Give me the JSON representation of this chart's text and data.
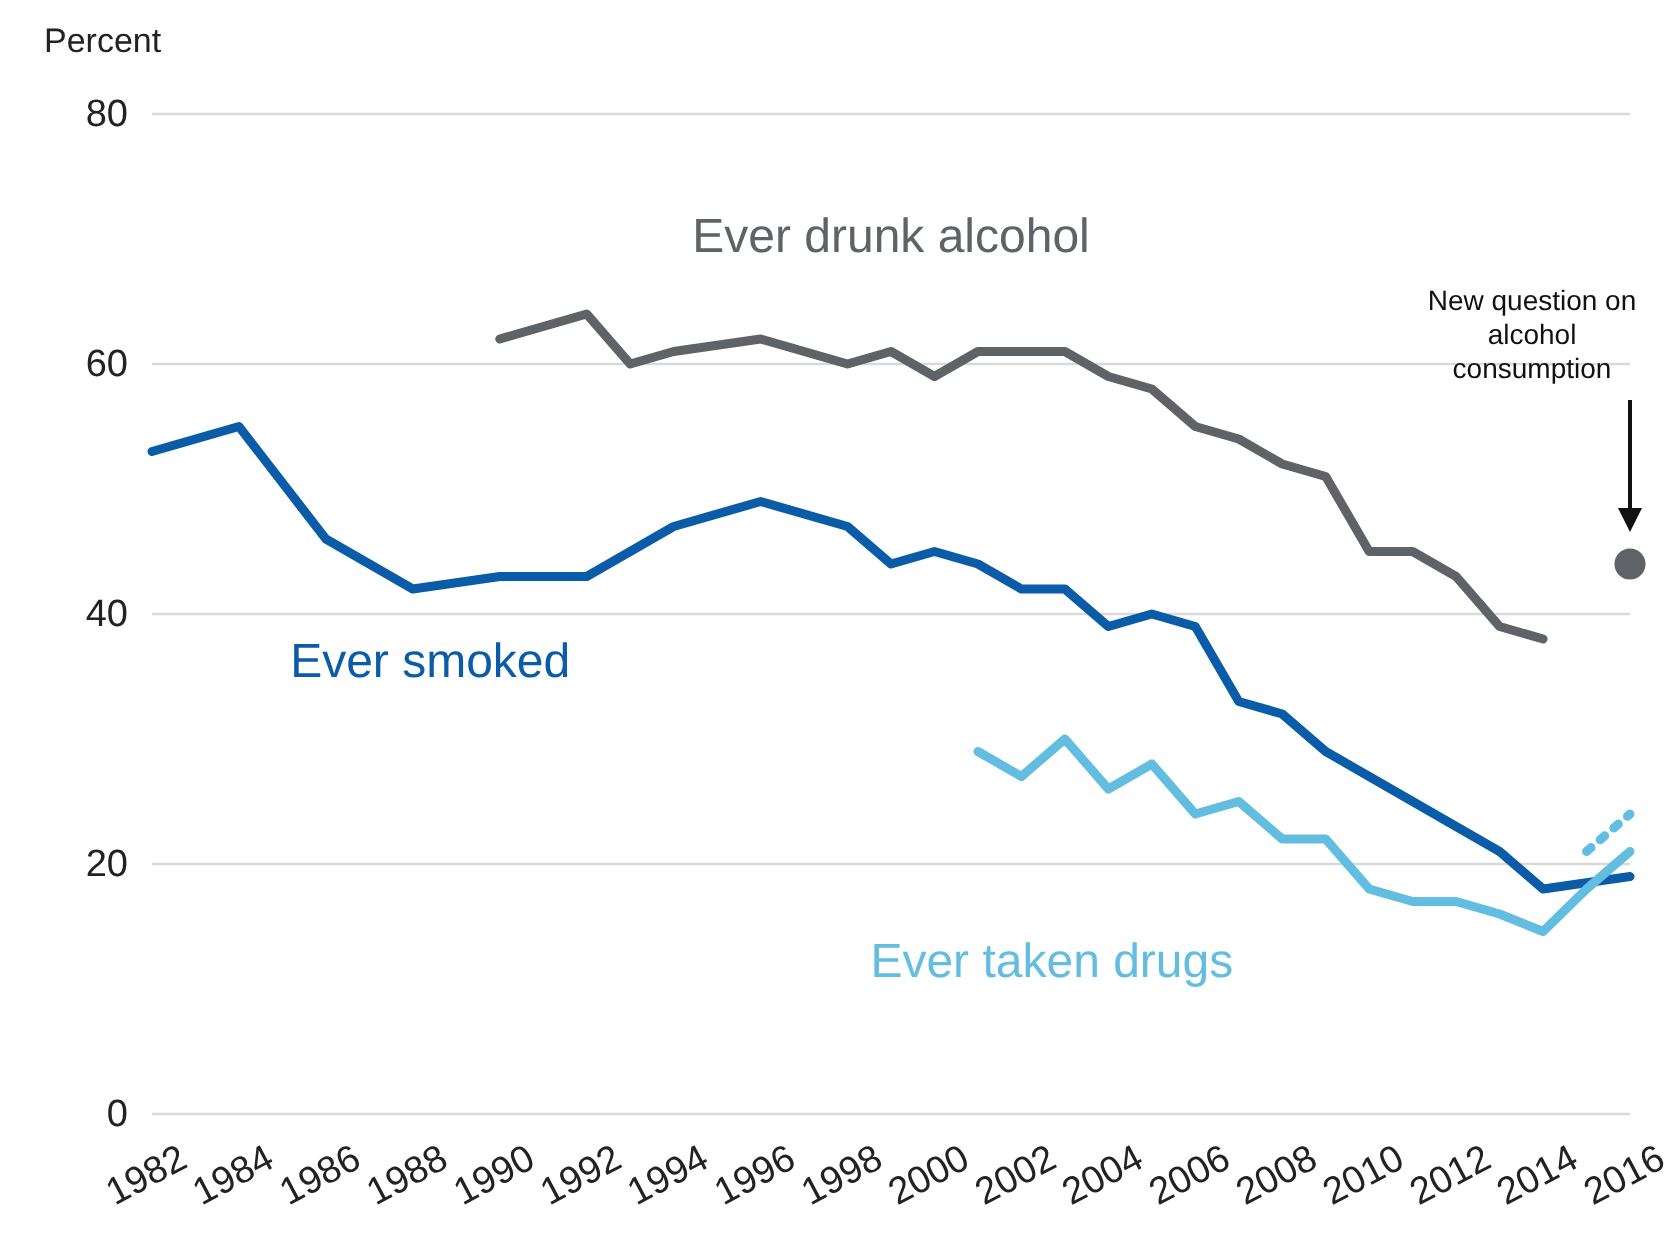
{
  "chart_data": {
    "type": "line",
    "ylabel": "Percent",
    "xlim": [
      1982,
      2016
    ],
    "xticks": [
      1982,
      1984,
      1986,
      1988,
      1990,
      1992,
      1994,
      1996,
      1998,
      2000,
      2002,
      2004,
      2006,
      2008,
      2010,
      2012,
      2014,
      2016
    ],
    "ylim": [
      0,
      80
    ],
    "yticks": [
      0,
      20,
      40,
      60,
      80
    ],
    "grid": "y",
    "legend": false,
    "marker": "none",
    "line_style": "solid",
    "series": [
      {
        "name": "Ever drunk alcohol",
        "color": "#5f6368",
        "x": [
          1990,
          1992,
          1993,
          1994,
          1996,
          1998,
          1999,
          2000,
          2001,
          2003,
          2004,
          2005,
          2006,
          2007,
          2008,
          2009,
          2010,
          2011,
          2012,
          2013,
          2014
        ],
        "values": [
          62,
          64,
          60,
          61,
          62,
          60,
          61,
          59,
          61,
          61,
          59,
          58,
          55,
          54,
          52,
          51,
          45,
          45,
          43,
          39,
          38
        ]
      },
      {
        "name": "Ever smoked",
        "color": "#0b5ca8",
        "x": [
          1982,
          1984,
          1986,
          1988,
          1990,
          1992,
          1994,
          1996,
          1998,
          1999,
          2000,
          2001,
          2002,
          2003,
          2004,
          2005,
          2006,
          2007,
          2008,
          2009,
          2010,
          2011,
          2012,
          2013,
          2014,
          2015,
          2016
        ],
        "values": [
          53,
          55,
          46,
          42,
          43,
          43,
          47,
          49,
          47,
          44,
          45,
          44,
          42,
          42,
          39,
          40,
          39,
          33,
          32,
          29,
          27,
          25,
          23,
          21,
          18,
          18.5,
          19
        ]
      },
      {
        "name": "Ever taken drugs",
        "color": "#62bde0",
        "x": [
          2001,
          2002,
          2003,
          2004,
          2005,
          2006,
          2007,
          2008,
          2009,
          2010,
          2011,
          2012,
          2013,
          2014,
          2015,
          2016
        ],
        "values": [
          29,
          27,
          30,
          26,
          28,
          24,
          25,
          22,
          22,
          18,
          17,
          17,
          16,
          14.6,
          18,
          21
        ]
      },
      {
        "color": "#62bde0",
        "line_style": "dotted",
        "x": [
          2015,
          2016
        ],
        "values": [
          21,
          24
        ]
      },
      {
        "type": "scatter",
        "marker": "circle",
        "color": "#5f6368",
        "x": [
          2016
        ],
        "values": [
          44
        ]
      }
    ],
    "annotations": [
      "New question on alcohol consumption"
    ]
  }
}
